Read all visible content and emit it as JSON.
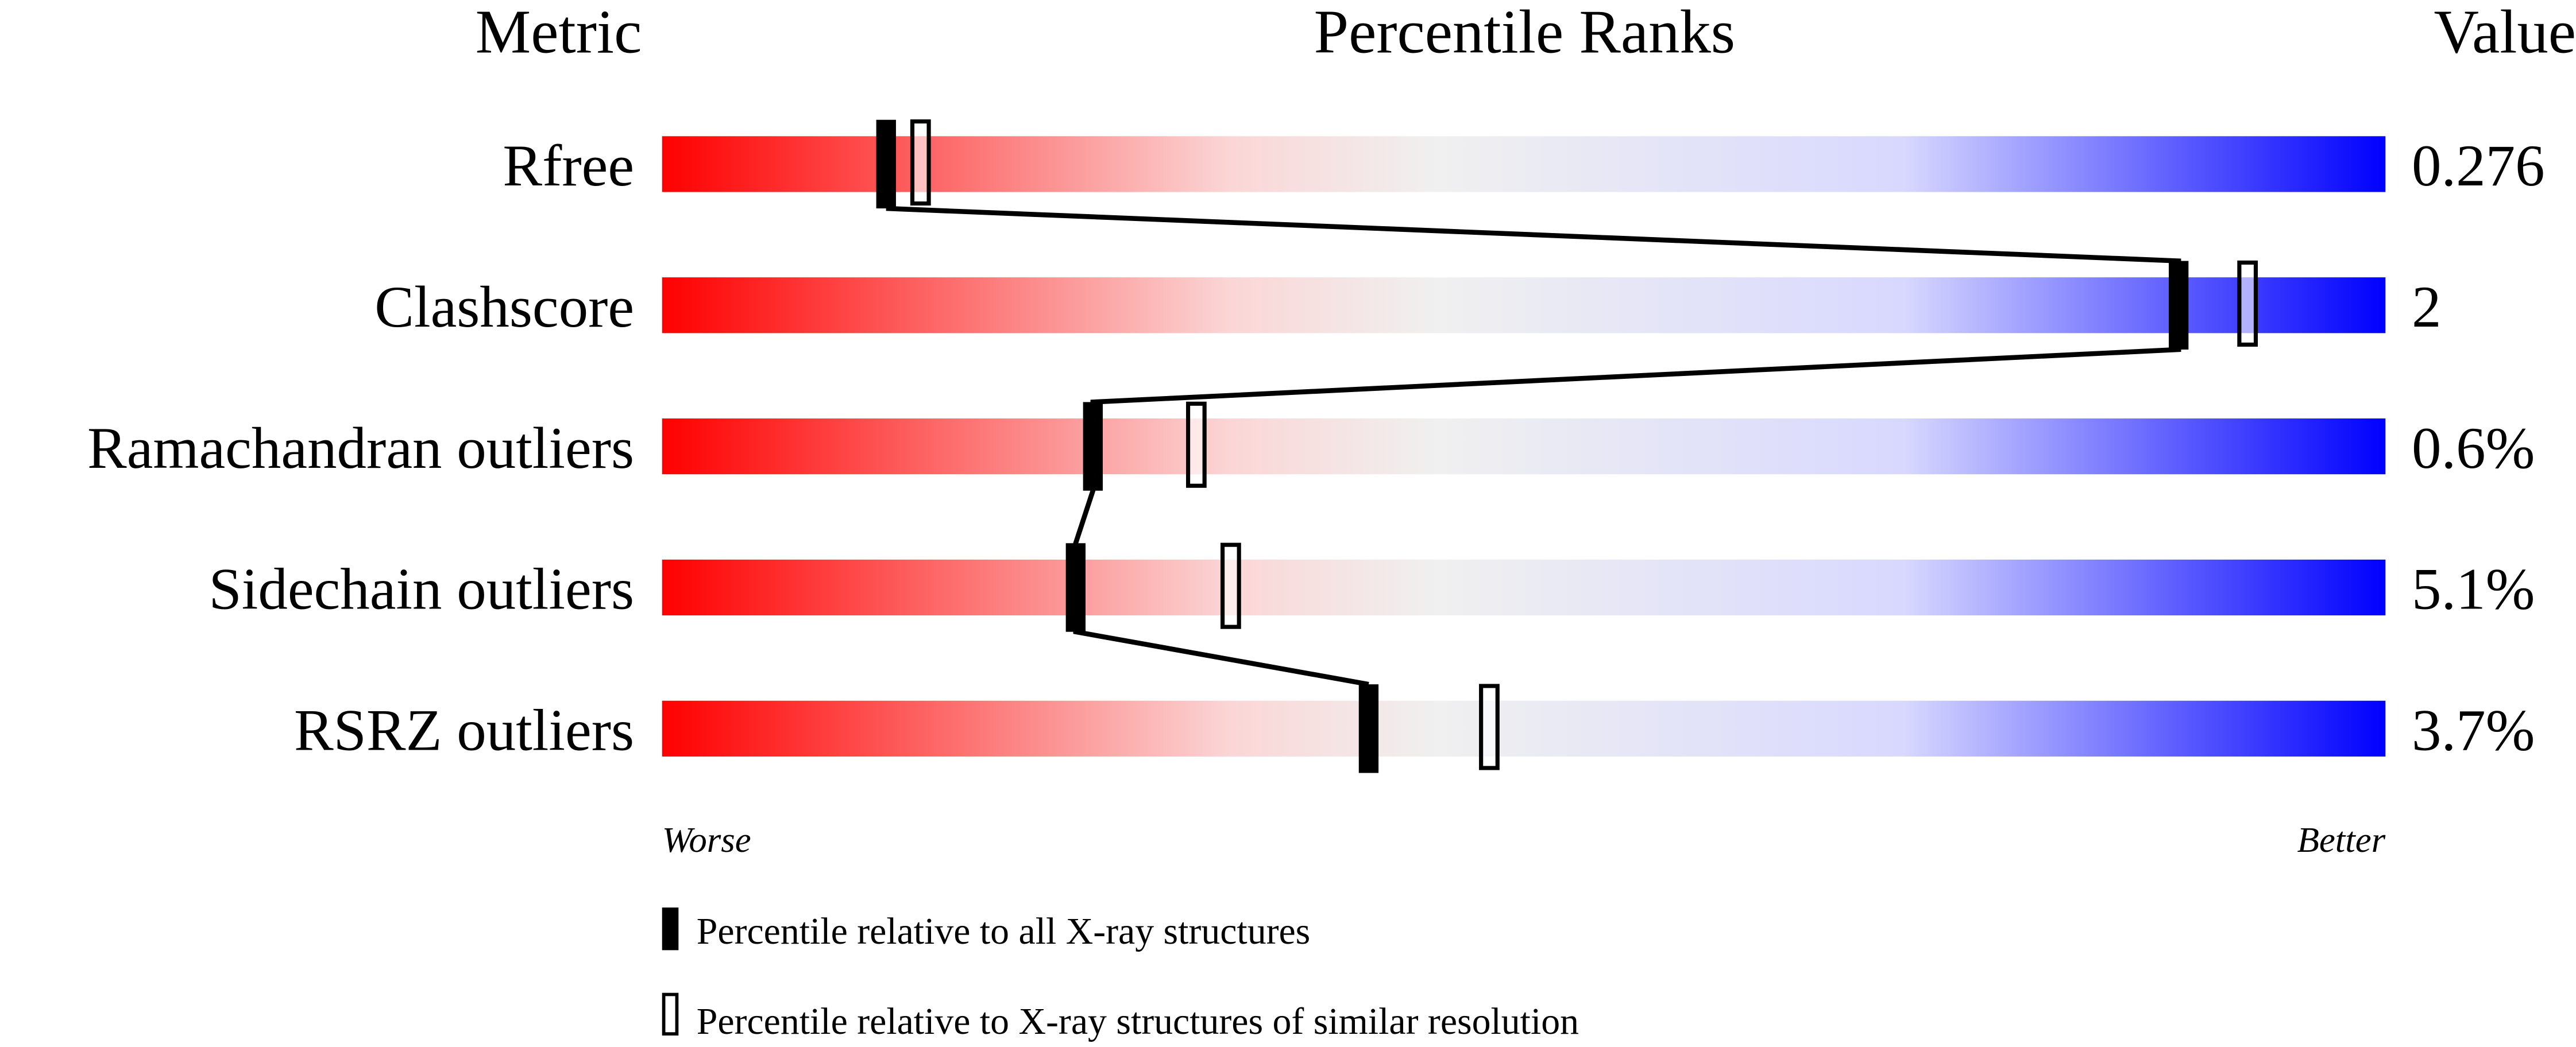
{
  "chart_data": {
    "type": "percentile-slider",
    "headers": {
      "metric": "Metric",
      "ranks": "Percentile Ranks",
      "value": "Value"
    },
    "xlim": [
      0,
      100
    ],
    "scale_labels": {
      "left": "Worse",
      "right": "Better"
    },
    "gradient_colors": [
      "#ff0000",
      "#fbd6d6",
      "#f0f0f0",
      "#d8d8ff",
      "#0000ff"
    ],
    "rows": [
      {
        "metric": "Rfree",
        "value": "0.276",
        "percentile_all": 13,
        "percentile_similar": 15
      },
      {
        "metric": "Clashscore",
        "value": "2",
        "percentile_all": 88,
        "percentile_similar": 92
      },
      {
        "metric": "Ramachandran outliers",
        "value": "0.6%",
        "percentile_all": 25,
        "percentile_similar": 31
      },
      {
        "metric": "Sidechain outliers",
        "value": "5.1%",
        "percentile_all": 24,
        "percentile_similar": 33
      },
      {
        "metric": "RSRZ outliers",
        "value": "3.7%",
        "percentile_all": 41,
        "percentile_similar": 48
      }
    ],
    "legend": [
      {
        "marker": "filled",
        "label": "Percentile relative to all X-ray structures"
      },
      {
        "marker": "open",
        "label": "Percentile relative to X-ray structures of similar resolution"
      }
    ]
  }
}
